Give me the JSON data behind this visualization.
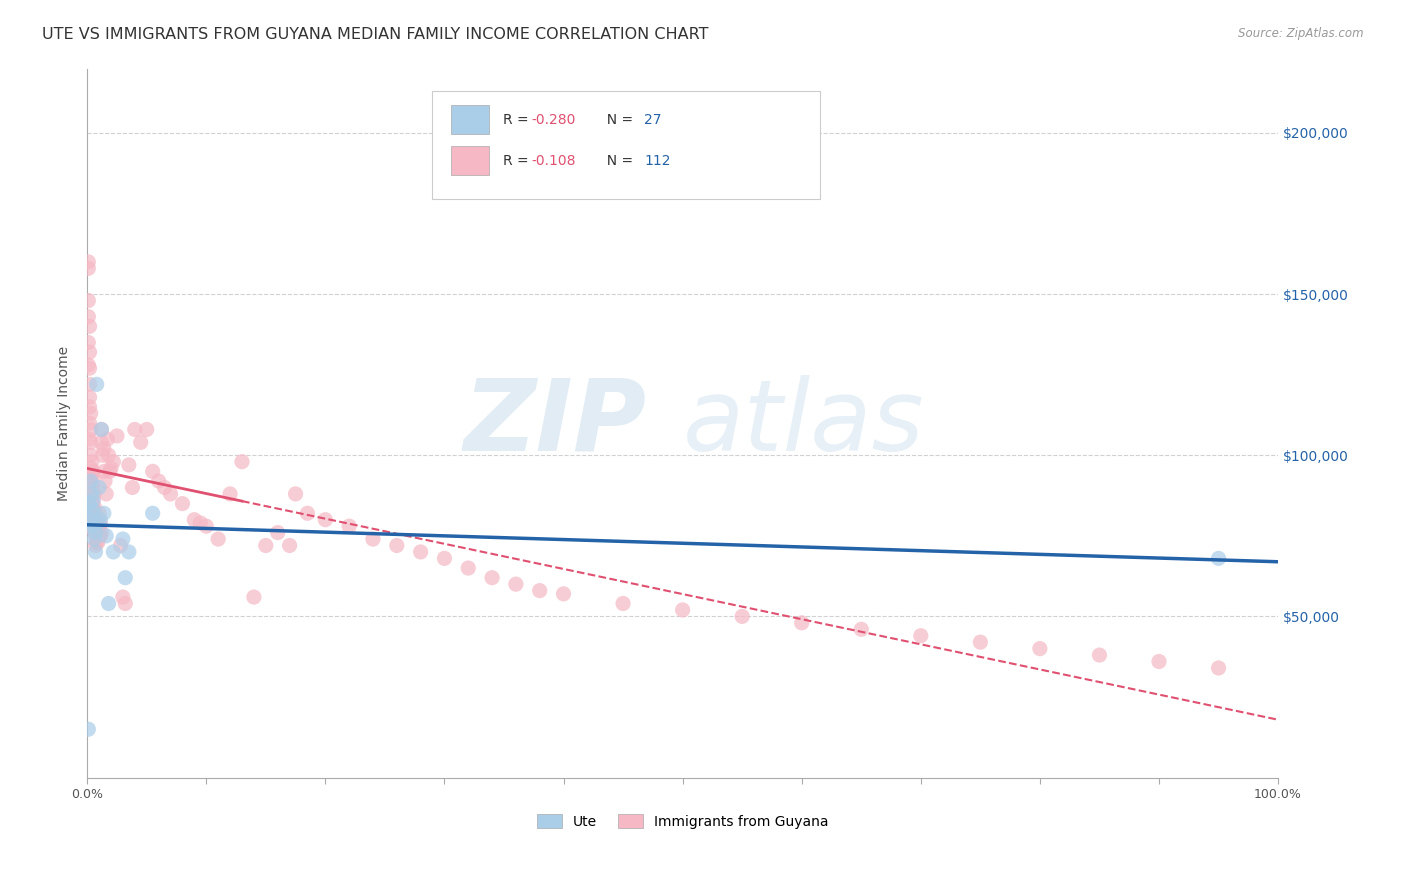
{
  "title": "UTE VS IMMIGRANTS FROM GUYANA MEDIAN FAMILY INCOME CORRELATION CHART",
  "source": "Source: ZipAtlas.com",
  "ylabel": "Median Family Income",
  "y_ticks": [
    50000,
    100000,
    150000,
    200000
  ],
  "y_tick_labels": [
    "$50,000",
    "$100,000",
    "$150,000",
    "$200,000"
  ],
  "x_range": [
    0.0,
    1.0
  ],
  "y_range": [
    0,
    220000
  ],
  "watermark_zip": "ZIP",
  "watermark_atlas": "atlas",
  "legend_ute_R": "-0.280",
  "legend_ute_N": "27",
  "legend_guyana_R": "-0.108",
  "legend_guyana_N": "112",
  "ute_color": "#aacde8",
  "guyana_color": "#f5b8c4",
  "ute_line_color": "#2563a8",
  "guyana_line_color": "#e05070",
  "ute_scatter": [
    [
      0.001,
      15000
    ],
    [
      0.002,
      80000
    ],
    [
      0.002,
      85000
    ],
    [
      0.003,
      78000
    ],
    [
      0.003,
      92000
    ],
    [
      0.004,
      88000
    ],
    [
      0.004,
      82000
    ],
    [
      0.005,
      83000
    ],
    [
      0.005,
      86000
    ],
    [
      0.006,
      74000
    ],
    [
      0.006,
      78000
    ],
    [
      0.007,
      70000
    ],
    [
      0.007,
      76000
    ],
    [
      0.008,
      122000
    ],
    [
      0.009,
      79000
    ],
    [
      0.01,
      90000
    ],
    [
      0.011,
      80000
    ],
    [
      0.012,
      108000
    ],
    [
      0.014,
      82000
    ],
    [
      0.016,
      75000
    ],
    [
      0.018,
      54000
    ],
    [
      0.022,
      70000
    ],
    [
      0.03,
      74000
    ],
    [
      0.032,
      62000
    ],
    [
      0.035,
      70000
    ],
    [
      0.055,
      82000
    ],
    [
      0.95,
      68000
    ]
  ],
  "guyana_scatter": [
    [
      0.001,
      160000
    ],
    [
      0.001,
      158000
    ],
    [
      0.001,
      148000
    ],
    [
      0.001,
      143000
    ],
    [
      0.001,
      135000
    ],
    [
      0.001,
      128000
    ],
    [
      0.002,
      140000
    ],
    [
      0.002,
      132000
    ],
    [
      0.002,
      127000
    ],
    [
      0.002,
      122000
    ],
    [
      0.002,
      118000
    ],
    [
      0.002,
      115000
    ],
    [
      0.002,
      110000
    ],
    [
      0.002,
      105000
    ],
    [
      0.003,
      113000
    ],
    [
      0.003,
      108000
    ],
    [
      0.003,
      104000
    ],
    [
      0.003,
      100000
    ],
    [
      0.003,
      96000
    ],
    [
      0.003,
      93000
    ],
    [
      0.003,
      90000
    ],
    [
      0.004,
      98000
    ],
    [
      0.004,
      94000
    ],
    [
      0.004,
      91000
    ],
    [
      0.004,
      88000
    ],
    [
      0.004,
      85000
    ],
    [
      0.004,
      82000
    ],
    [
      0.005,
      95000
    ],
    [
      0.005,
      90000
    ],
    [
      0.005,
      86000
    ],
    [
      0.005,
      83000
    ],
    [
      0.005,
      80000
    ],
    [
      0.005,
      77000
    ],
    [
      0.006,
      88000
    ],
    [
      0.006,
      84000
    ],
    [
      0.006,
      80000
    ],
    [
      0.006,
      77000
    ],
    [
      0.007,
      82000
    ],
    [
      0.007,
      78000
    ],
    [
      0.007,
      75000
    ],
    [
      0.007,
      72000
    ],
    [
      0.008,
      80000
    ],
    [
      0.008,
      76000
    ],
    [
      0.008,
      73000
    ],
    [
      0.009,
      76000
    ],
    [
      0.009,
      73000
    ],
    [
      0.01,
      82000
    ],
    [
      0.01,
      78000
    ],
    [
      0.01,
      75000
    ],
    [
      0.011,
      79000
    ],
    [
      0.011,
      75000
    ],
    [
      0.012,
      108000
    ],
    [
      0.012,
      104000
    ],
    [
      0.012,
      76000
    ],
    [
      0.013,
      100000
    ],
    [
      0.014,
      102000
    ],
    [
      0.014,
      95000
    ],
    [
      0.015,
      92000
    ],
    [
      0.016,
      88000
    ],
    [
      0.017,
      105000
    ],
    [
      0.018,
      100000
    ],
    [
      0.019,
      95000
    ],
    [
      0.02,
      96000
    ],
    [
      0.022,
      98000
    ],
    [
      0.025,
      106000
    ],
    [
      0.028,
      72000
    ],
    [
      0.03,
      56000
    ],
    [
      0.032,
      54000
    ],
    [
      0.035,
      97000
    ],
    [
      0.038,
      90000
    ],
    [
      0.04,
      108000
    ],
    [
      0.045,
      104000
    ],
    [
      0.05,
      108000
    ],
    [
      0.055,
      95000
    ],
    [
      0.06,
      92000
    ],
    [
      0.065,
      90000
    ],
    [
      0.07,
      88000
    ],
    [
      0.08,
      85000
    ],
    [
      0.09,
      80000
    ],
    [
      0.095,
      79000
    ],
    [
      0.1,
      78000
    ],
    [
      0.11,
      74000
    ],
    [
      0.12,
      88000
    ],
    [
      0.13,
      98000
    ],
    [
      0.14,
      56000
    ],
    [
      0.15,
      72000
    ],
    [
      0.16,
      76000
    ],
    [
      0.17,
      72000
    ],
    [
      0.175,
      88000
    ],
    [
      0.185,
      82000
    ],
    [
      0.2,
      80000
    ],
    [
      0.22,
      78000
    ],
    [
      0.24,
      74000
    ],
    [
      0.26,
      72000
    ],
    [
      0.28,
      70000
    ],
    [
      0.3,
      68000
    ],
    [
      0.32,
      65000
    ],
    [
      0.34,
      62000
    ],
    [
      0.36,
      60000
    ],
    [
      0.38,
      58000
    ],
    [
      0.4,
      57000
    ],
    [
      0.45,
      54000
    ],
    [
      0.5,
      52000
    ],
    [
      0.55,
      50000
    ],
    [
      0.6,
      48000
    ],
    [
      0.65,
      46000
    ],
    [
      0.7,
      44000
    ],
    [
      0.75,
      42000
    ],
    [
      0.8,
      40000
    ],
    [
      0.85,
      38000
    ],
    [
      0.9,
      36000
    ],
    [
      0.95,
      34000
    ]
  ],
  "background_color": "#ffffff",
  "grid_color": "#cccccc",
  "title_fontsize": 11.5,
  "axis_label_fontsize": 10,
  "tick_label_fontsize": 9,
  "legend_R_color": "#e05070",
  "legend_N_color": "#2563a8"
}
